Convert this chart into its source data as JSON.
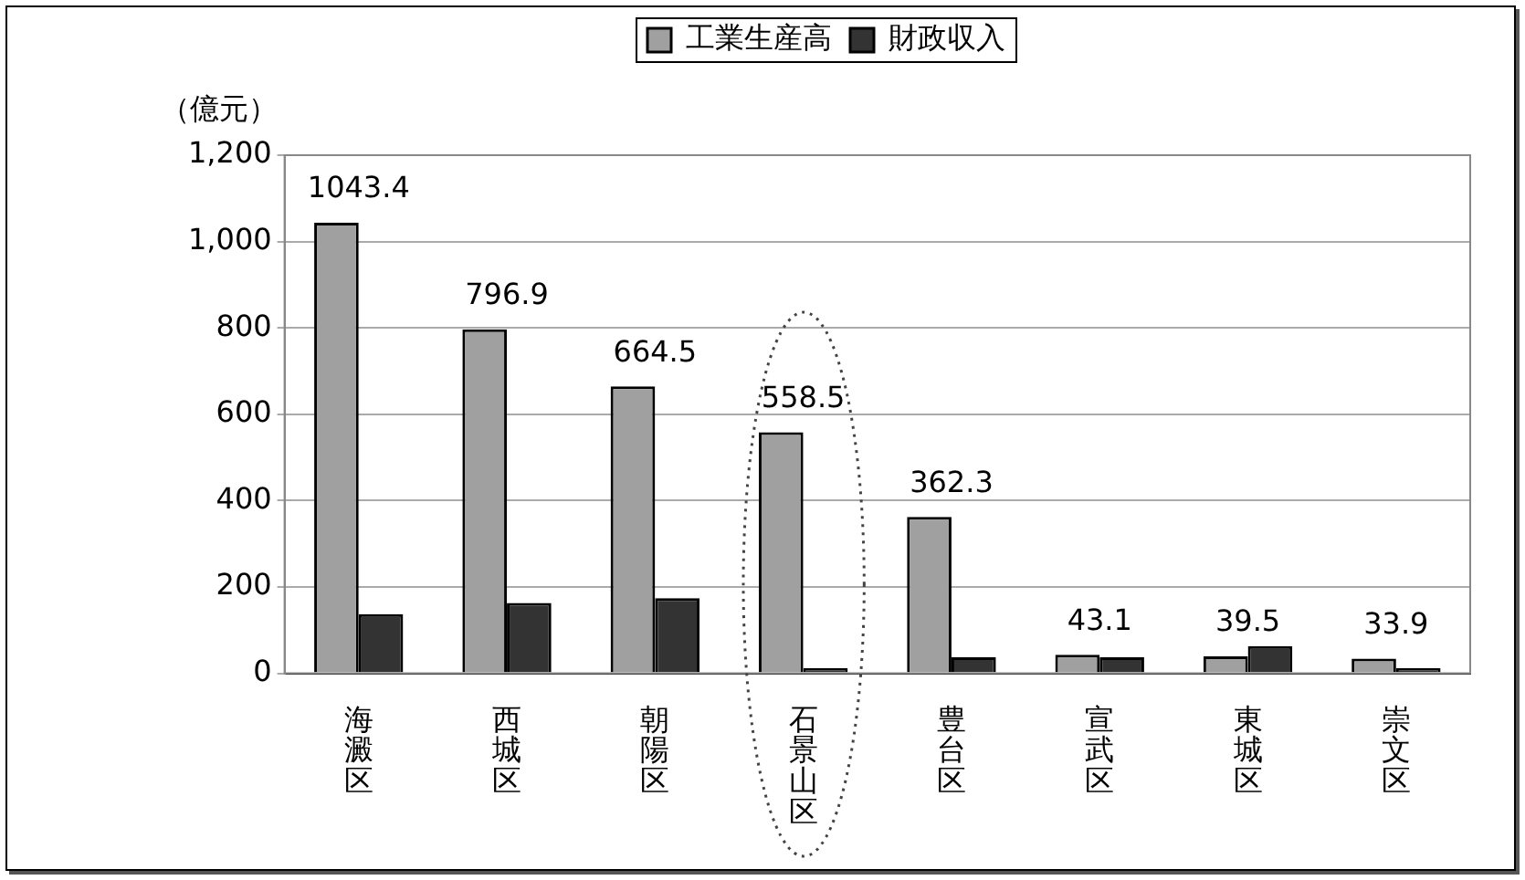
{
  "chart_data": {
    "type": "bar",
    "ylabel": "（億元）",
    "categories": [
      "海澱区",
      "西城区",
      "朝陽区",
      "石景山区",
      "豊台区",
      "宣武区",
      "東城区",
      "崇文区"
    ],
    "series": [
      {
        "name": "工業生産高",
        "color": "#a0a0a0",
        "values": [
          1043.4,
          796.9,
          664.5,
          558.5,
          362.3,
          43.1,
          39.5,
          33.9
        ],
        "value_labels": [
          "1043.4",
          "796.9",
          "664.5",
          "558.5",
          "362.3",
          "43.1",
          "39.5",
          "33.9"
        ]
      },
      {
        "name": "財政収入",
        "color": "#333333",
        "values": [
          137,
          163,
          174,
          12,
          37,
          37,
          63,
          12
        ]
      }
    ],
    "ylim": [
      0,
      1200
    ],
    "yticks": [
      0,
      200,
      400,
      600,
      800,
      {
        "value": 1000,
        "label": "1,000"
      },
      {
        "value": 1200,
        "label": "1,200"
      }
    ],
    "grid": "y",
    "legend": "top"
  }
}
